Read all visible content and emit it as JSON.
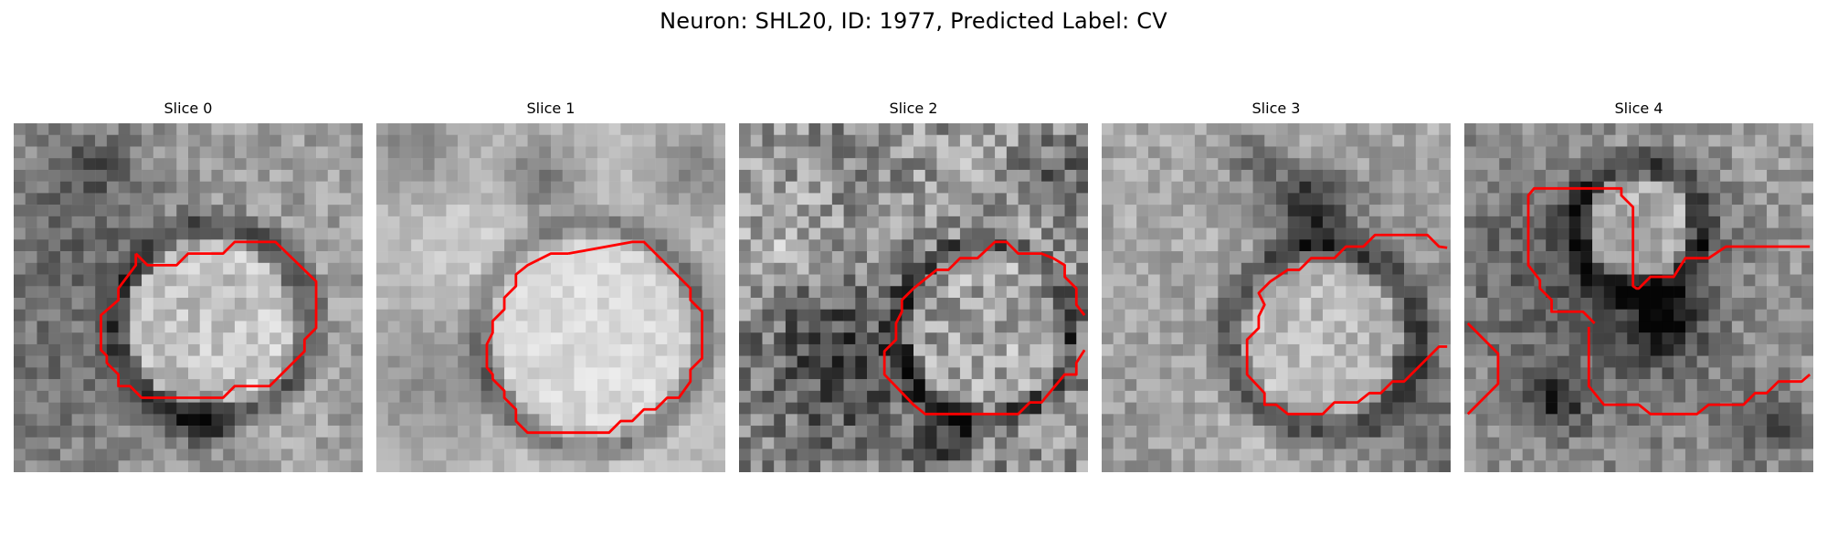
{
  "figure": {
    "title": "Neuron: SHL20, ID: 1977, Predicted Label: CV"
  },
  "panels": [
    {
      "title": "Slice 0"
    },
    {
      "title": "Slice 1"
    },
    {
      "title": "Slice 2"
    },
    {
      "title": "Slice 3"
    },
    {
      "title": "Slice 4"
    }
  ],
  "colors": {
    "contour": "#ff0000",
    "background": "#ffffff"
  }
}
